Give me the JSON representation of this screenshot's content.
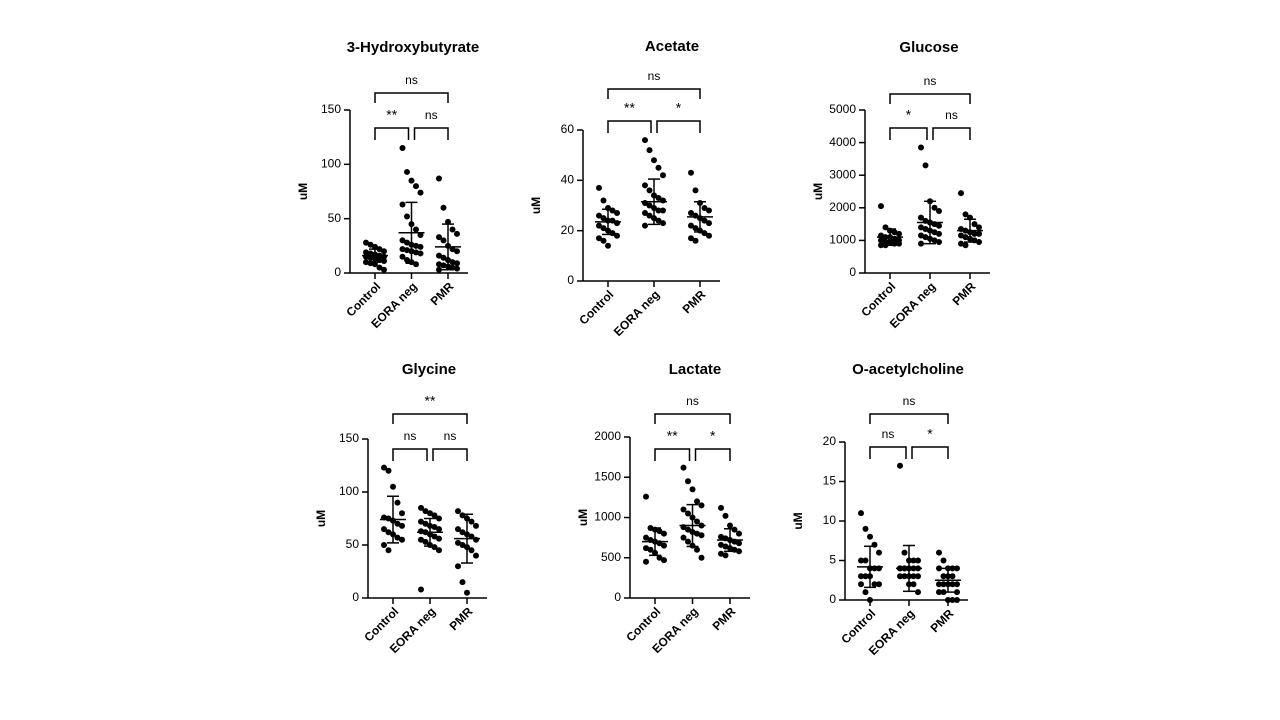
{
  "chart_data": [
    {
      "type": "dotplot",
      "title": "3-Hydroxybutyrate",
      "ylabel": "uM",
      "categories": [
        "Control",
        "EORA neg",
        "PMR"
      ],
      "ylim": [
        0,
        150
      ],
      "yticks": [
        0,
        50,
        100,
        150
      ],
      "groups": [
        {
          "values": [
            28,
            26,
            24,
            22,
            20,
            19,
            18,
            17,
            16,
            15,
            15,
            14,
            13,
            12,
            11,
            10,
            9,
            8,
            5,
            3
          ],
          "mean": 16,
          "sd": 6
        },
        {
          "values": [
            115,
            93,
            85,
            80,
            74,
            63,
            52,
            45,
            40,
            35,
            30,
            28,
            26,
            25,
            24,
            22,
            21,
            20,
            19,
            18,
            15,
            12,
            10,
            8
          ],
          "mean": 37,
          "sd": 28
        },
        {
          "values": [
            87,
            60,
            47,
            40,
            36,
            33,
            30,
            25,
            22,
            20,
            16,
            14,
            12,
            10,
            9,
            8,
            7,
            6,
            5,
            4,
            3
          ],
          "mean": 24,
          "sd": 21
        }
      ],
      "brackets": [
        {
          "pair": [
            "Control",
            "EORA neg"
          ],
          "label": "**"
        },
        {
          "pair": [
            "EORA neg",
            "PMR"
          ],
          "label": "ns"
        },
        {
          "pair": [
            "Control",
            "PMR"
          ],
          "label": "ns"
        }
      ]
    },
    {
      "type": "dotplot",
      "title": "Acetate",
      "ylabel": "uM",
      "categories": [
        "Control",
        "EORA neg",
        "PMR"
      ],
      "ylim": [
        0,
        60
      ],
      "yticks": [
        0,
        20,
        40,
        60
      ],
      "groups": [
        {
          "values": [
            37,
            32,
            29,
            28,
            27,
            26,
            25,
            24,
            24,
            23,
            22,
            21,
            20,
            19,
            18,
            17,
            16,
            14
          ],
          "mean": 23.5,
          "sd": 5
        },
        {
          "values": [
            56,
            52,
            48,
            45,
            42,
            38,
            36,
            34,
            33,
            32,
            31,
            30,
            29,
            28,
            28,
            27,
            26,
            25,
            24,
            23,
            22
          ],
          "mean": 31.5,
          "sd": 9
        },
        {
          "values": [
            43,
            36,
            31,
            29,
            28,
            27,
            26,
            25,
            24,
            23,
            22,
            21,
            20,
            19,
            18,
            17,
            16
          ],
          "mean": 25.5,
          "sd": 6
        }
      ],
      "brackets": [
        {
          "pair": [
            "Control",
            "EORA neg"
          ],
          "label": "**"
        },
        {
          "pair": [
            "EORA neg",
            "PMR"
          ],
          "label": "*"
        },
        {
          "pair": [
            "Control",
            "PMR"
          ],
          "label": "ns"
        }
      ]
    },
    {
      "type": "dotplot",
      "title": "Glucose",
      "ylabel": "uM",
      "categories": [
        "Control",
        "EORA neg",
        "PMR"
      ],
      "ylim": [
        0,
        5000
      ],
      "yticks": [
        0,
        1000,
        2000,
        3000,
        4000,
        5000
      ],
      "groups": [
        {
          "values": [
            2050,
            1400,
            1300,
            1250,
            1200,
            1150,
            1100,
            1100,
            1050,
            1000,
            1000,
            950,
            950,
            900,
            900,
            850,
            850
          ],
          "mean": 1100,
          "sd": 250
        },
        {
          "values": [
            3850,
            3300,
            2200,
            2000,
            1900,
            1700,
            1600,
            1550,
            1500,
            1450,
            1400,
            1350,
            1300,
            1250,
            1200,
            1150,
            1100,
            1050,
            1000,
            950,
            900
          ],
          "mean": 1550,
          "sd": 650
        },
        {
          "values": [
            2450,
            1800,
            1700,
            1500,
            1400,
            1350,
            1300,
            1250,
            1200,
            1200,
            1150,
            1100,
            1050,
            1000,
            950,
            900,
            850
          ],
          "mean": 1300,
          "sd": 350
        }
      ],
      "brackets": [
        {
          "pair": [
            "Control",
            "EORA neg"
          ],
          "label": "*"
        },
        {
          "pair": [
            "EORA neg",
            "PMR"
          ],
          "label": "ns"
        },
        {
          "pair": [
            "Control",
            "PMR"
          ],
          "label": "ns"
        }
      ]
    },
    {
      "type": "dotplot",
      "title": "Glycine",
      "ylabel": "uM",
      "categories": [
        "Control",
        "EORA neg",
        "PMR"
      ],
      "ylim": [
        0,
        150
      ],
      "yticks": [
        0,
        50,
        100,
        150
      ],
      "groups": [
        {
          "values": [
            123,
            120,
            105,
            90,
            80,
            76,
            75,
            73,
            70,
            68,
            65,
            62,
            60,
            57,
            55,
            50,
            45
          ],
          "mean": 74,
          "sd": 22
        },
        {
          "values": [
            85,
            82,
            80,
            78,
            75,
            72,
            70,
            68,
            67,
            65,
            63,
            62,
            60,
            58,
            56,
            55,
            53,
            50,
            48,
            45,
            8
          ],
          "mean": 62,
          "sd": 13
        },
        {
          "values": [
            82,
            78,
            75,
            72,
            68,
            65,
            62,
            60,
            58,
            55,
            52,
            50,
            48,
            45,
            40,
            30,
            15,
            5
          ],
          "mean": 56,
          "sd": 23
        }
      ],
      "brackets": [
        {
          "pair": [
            "Control",
            "EORA neg"
          ],
          "label": "ns"
        },
        {
          "pair": [
            "EORA neg",
            "PMR"
          ],
          "label": "ns"
        },
        {
          "pair": [
            "Control",
            "PMR"
          ],
          "label": "**"
        }
      ]
    },
    {
      "type": "dotplot",
      "title": "Lactate",
      "ylabel": "uM",
      "categories": [
        "Control",
        "EORA neg",
        "PMR"
      ],
      "ylim": [
        0,
        2000
      ],
      "yticks": [
        0,
        500,
        1000,
        1500,
        2000
      ],
      "groups": [
        {
          "values": [
            1260,
            870,
            850,
            830,
            800,
            750,
            720,
            700,
            680,
            650,
            620,
            600,
            560,
            500,
            470,
            450
          ],
          "mean": 700,
          "sd": 170
        },
        {
          "values": [
            1620,
            1450,
            1350,
            1200,
            1150,
            1100,
            1050,
            1000,
            950,
            900,
            880,
            850,
            820,
            800,
            780,
            750,
            700,
            650,
            600,
            500
          ],
          "mean": 900,
          "sd": 260
        },
        {
          "values": [
            1120,
            1020,
            900,
            850,
            800,
            760,
            740,
            720,
            700,
            680,
            660,
            640,
            620,
            600,
            580,
            550,
            530
          ],
          "mean": 720,
          "sd": 140
        }
      ],
      "brackets": [
        {
          "pair": [
            "Control",
            "EORA neg"
          ],
          "label": "**"
        },
        {
          "pair": [
            "EORA neg",
            "PMR"
          ],
          "label": "*"
        },
        {
          "pair": [
            "Control",
            "PMR"
          ],
          "label": "ns"
        }
      ]
    },
    {
      "type": "dotplot",
      "title": "O-acetylcholine",
      "ylabel": "uM",
      "categories": [
        "Control",
        "EORA neg",
        "PMR"
      ],
      "ylim": [
        0,
        20
      ],
      "yticks": [
        0,
        5,
        10,
        15,
        20
      ],
      "groups": [
        {
          "values": [
            11,
            9,
            8,
            7,
            6,
            5,
            5,
            4,
            4,
            4,
            3,
            3,
            3,
            2,
            2,
            2,
            1,
            0
          ],
          "mean": 4.2,
          "sd": 2.6
        },
        {
          "values": [
            17,
            6,
            5,
            5,
            5,
            4,
            4,
            4,
            4,
            4,
            4,
            4,
            3,
            3,
            3,
            3,
            3,
            2,
            2,
            1
          ],
          "mean": 4,
          "sd": 2.9
        },
        {
          "values": [
            6,
            5,
            4,
            4,
            4,
            4,
            3,
            3,
            3,
            2,
            2,
            2,
            2,
            2,
            1,
            1,
            1,
            0,
            0,
            0
          ],
          "mean": 2.5,
          "sd": 1.5
        }
      ],
      "brackets": [
        {
          "pair": [
            "Control",
            "EORA neg"
          ],
          "label": "ns"
        },
        {
          "pair": [
            "EORA neg",
            "PMR"
          ],
          "label": "*"
        },
        {
          "pair": [
            "Control",
            "PMR"
          ],
          "label": "ns"
        }
      ]
    }
  ]
}
